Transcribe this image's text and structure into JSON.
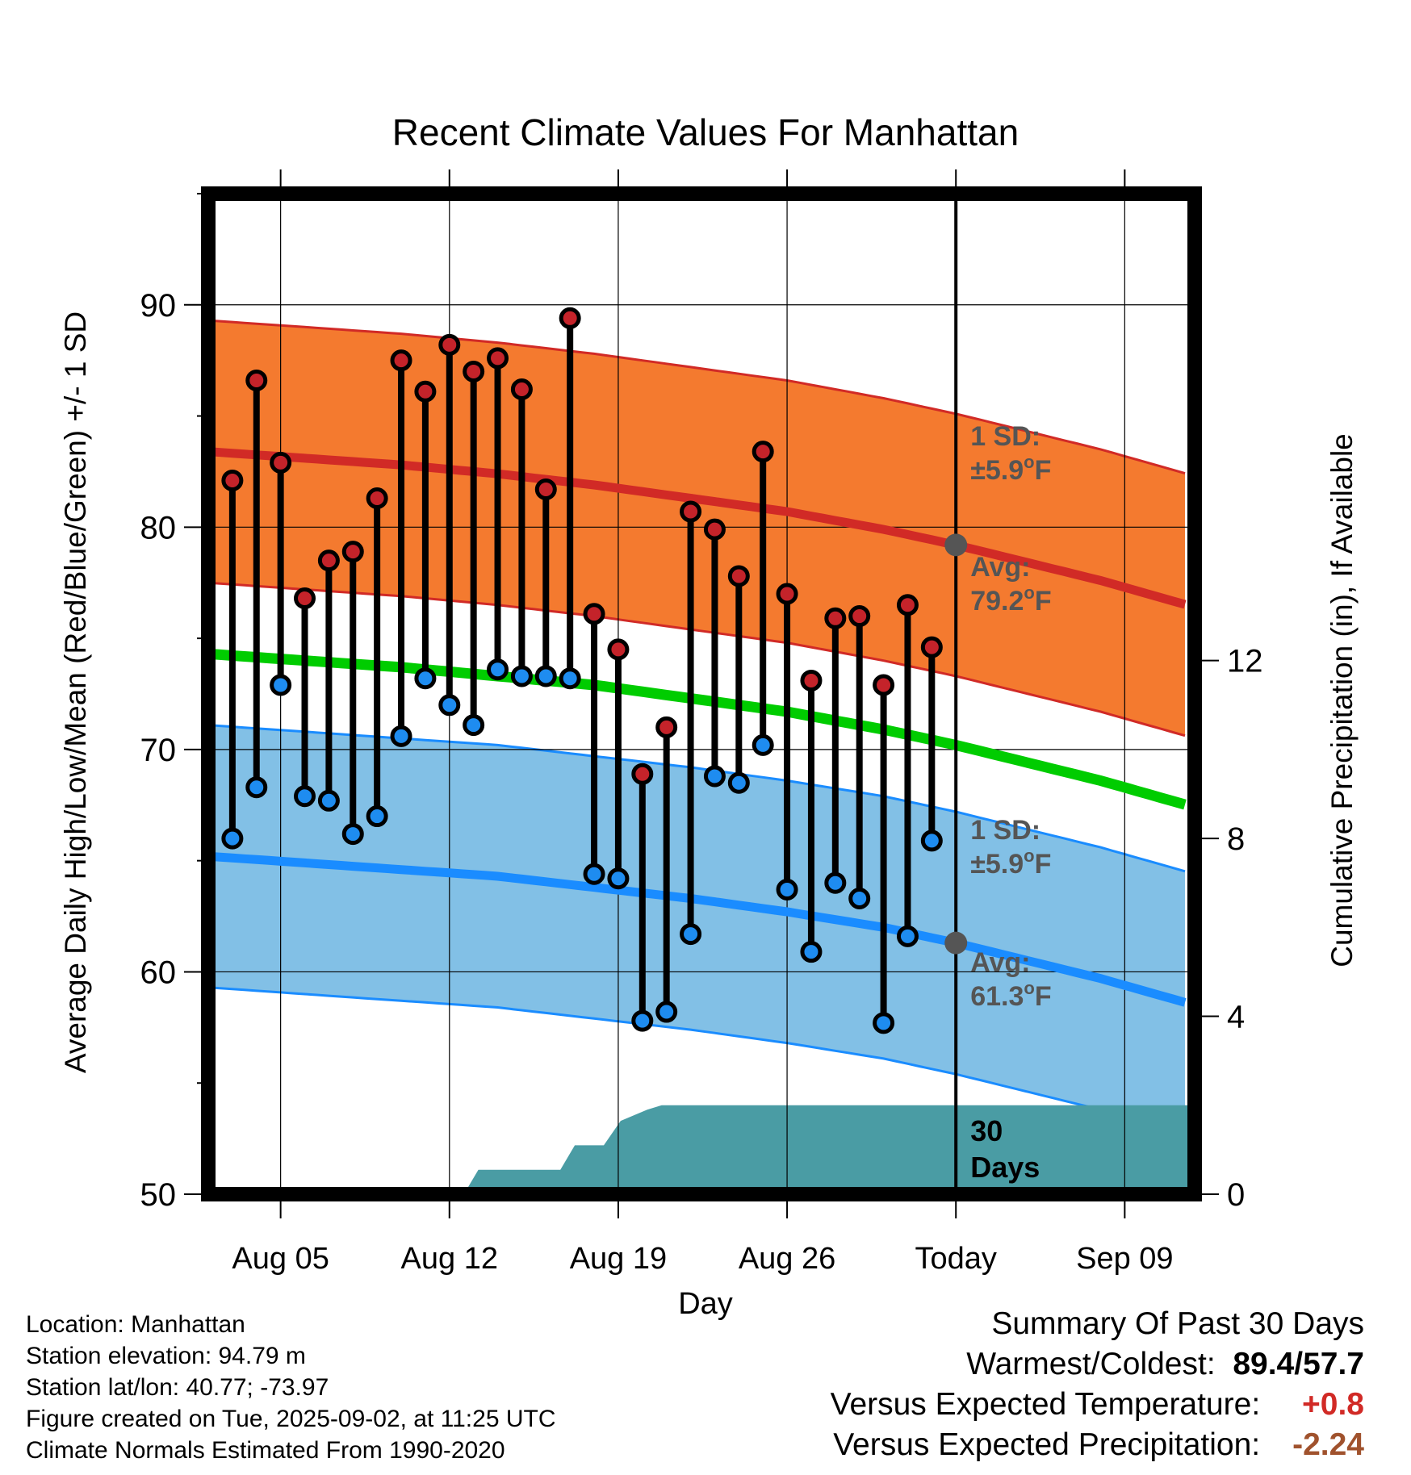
{
  "chart_data": {
    "type": "line",
    "title": "Recent Climate Values For Manhattan",
    "xlabel": "Day",
    "ylabel": "Average Daily High/Low/Mean (Red/Blue/Green) +/- 1 SD",
    "y2label": "Cumulative Precipitation (in), If Available",
    "ylim": [
      50,
      95
    ],
    "y2lim": [
      0,
      22.5
    ],
    "yticks": [
      "90",
      "80",
      "70",
      "60",
      "50"
    ],
    "y2ticks": [
      "12",
      "8",
      "4",
      "0"
    ],
    "xticks": [
      "Aug 05",
      "Aug 12",
      "Aug 19",
      "Aug 26",
      "Today",
      "Sep 09"
    ],
    "x_range_days": [
      -31.0,
      9.9
    ],
    "grid": true,
    "colors": {
      "high_band": "#f47a2f",
      "high_line": "#d12a26",
      "low_band": "#82c0e6",
      "low_line": "#1a8cff",
      "mean_line": "#00cc00",
      "precip": "#4a9ca4",
      "high_dot": "#c4232a",
      "low_dot": "#1e8cf0",
      "today_dot": "#555555",
      "annot": "#555555"
    },
    "normals": {
      "x": [
        -31,
        -27,
        -23,
        -19,
        -15,
        -11,
        -7,
        -3,
        0,
        3,
        6,
        9.9
      ],
      "high": [
        83.4,
        83.1,
        82.8,
        82.4,
        81.9,
        81.3,
        80.7,
        79.9,
        79.2,
        78.4,
        77.6,
        76.4
      ],
      "low": [
        65.2,
        64.9,
        64.6,
        64.3,
        63.8,
        63.3,
        62.7,
        62.0,
        61.3,
        60.5,
        59.7,
        58.5
      ],
      "mean": [
        74.3,
        74.0,
        73.7,
        73.3,
        72.9,
        72.3,
        71.7,
        70.9,
        70.2,
        69.4,
        68.6,
        67.4
      ],
      "sd": 5.9
    },
    "series": [
      {
        "name": "Daily High",
        "x": [
          -30,
          -29,
          -28,
          -27,
          -26,
          -25,
          -24,
          -23,
          -22,
          -21,
          -20,
          -19,
          -18,
          -17,
          -16,
          -15,
          -14,
          -13,
          -12,
          -11,
          -10,
          -9,
          -8,
          -7,
          -6,
          -5,
          -4,
          -3,
          -2,
          -1
        ],
        "values": [
          82.1,
          86.6,
          82.9,
          76.8,
          78.5,
          78.9,
          81.3,
          87.5,
          86.1,
          88.2,
          87.0,
          87.6,
          86.2,
          81.7,
          89.4,
          76.1,
          74.5,
          68.9,
          71.0,
          80.7,
          79.9,
          77.8,
          83.4,
          77.0,
          73.1,
          75.9,
          76.0,
          72.9,
          76.5,
          74.6
        ]
      },
      {
        "name": "Daily Low",
        "x": [
          -30,
          -29,
          -28,
          -27,
          -26,
          -25,
          -24,
          -23,
          -22,
          -21,
          -20,
          -19,
          -18,
          -17,
          -16,
          -15,
          -14,
          -13,
          -12,
          -11,
          -10,
          -9,
          -8,
          -7,
          -6,
          -5,
          -4,
          -3,
          -2,
          -1
        ],
        "values": [
          66.0,
          68.3,
          72.9,
          67.9,
          67.7,
          66.2,
          67.0,
          70.6,
          73.2,
          72.0,
          71.1,
          73.6,
          73.3,
          73.3,
          73.2,
          64.4,
          64.2,
          57.8,
          58.2,
          61.7,
          68.8,
          68.5,
          70.2,
          63.7,
          60.9,
          64.0,
          63.3,
          57.7,
          61.6,
          65.9
        ]
      },
      {
        "name": "Cumulative Precipitation",
        "x": [
          -31,
          -20.4,
          -19.8,
          -16.4,
          -15.8,
          -14.6,
          -13.9,
          -12.8,
          -12.2,
          -11.8,
          9.9
        ],
        "values": [
          0,
          0,
          0.55,
          0.55,
          1.1,
          1.1,
          1.65,
          1.9,
          2.0,
          2.0,
          2.0
        ]
      }
    ],
    "annotations": {
      "high_sd_label_1": "1 SD:",
      "high_sd_label_2": "±5.9",
      "high_avg_label_1": "Avg:",
      "high_avg_label_2": "79.2",
      "low_sd_label_1": "1 SD:",
      "low_sd_label_2": "±5.9",
      "low_avg_label_1": "Avg:",
      "low_avg_label_2": "61.3",
      "deg": "o",
      "unit": "F",
      "days_label_1": "30",
      "days_label_2": "Days"
    }
  },
  "info": {
    "location": "Location: Manhattan",
    "elevation": "Station elevation: 94.79 m",
    "latlon": "Station lat/lon: 40.77; -73.97",
    "created": "Figure created on Tue, 2025-09-02, at 11:25 UTC",
    "normals": "Climate Normals Estimated From 1990-2020"
  },
  "summary": {
    "heading": "Summary Of Past 30 Days",
    "warmest_label": "Warmest/Coldest:",
    "warmest_value": "89.4",
    "slash": "/",
    "coldest_value": "57.7",
    "temp_label": "Versus Expected Temperature:",
    "temp_value": "+0.8",
    "precip_label": "Versus Expected Precipitation:",
    "precip_value": "-2.24",
    "temp_color": "#d12a26",
    "precip_color": "#a0522d"
  }
}
